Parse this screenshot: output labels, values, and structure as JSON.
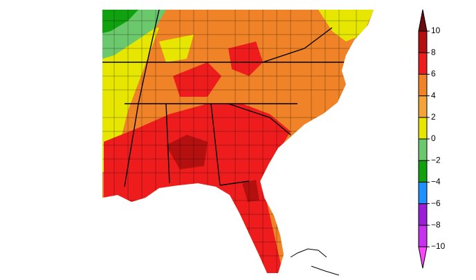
{
  "colorbar": {
    "ticks": [
      {
        "value": -10,
        "label": "−10"
      },
      {
        "value": -8,
        "label": "−8"
      },
      {
        "value": -6,
        "label": "−6"
      },
      {
        "value": -4,
        "label": "−4"
      },
      {
        "value": -2,
        "label": "−2"
      },
      0,
      2,
      4,
      6,
      8,
      10
    ],
    "colors": [
      "#ff44ff",
      "#c830f0",
      "#9a1ed8",
      "#1e90ff",
      "#10a010",
      "#6cc86c",
      "#e6e600",
      "#f2a438",
      "#f08228",
      "#ee1c1c",
      "#b41010",
      "#6a0c0c"
    ]
  }
}
